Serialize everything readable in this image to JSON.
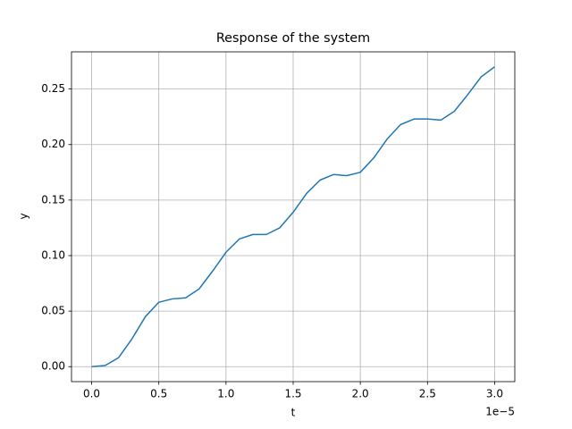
{
  "chart_data": {
    "type": "line",
    "title": "Response of the system",
    "x_label": "t",
    "y_label": "y",
    "x_offset_label": "1e−5",
    "x": [
      0.0,
      0.1,
      0.2,
      0.3,
      0.4,
      0.5,
      0.6,
      0.7,
      0.8,
      0.9,
      1.0,
      1.1,
      1.2,
      1.3,
      1.4,
      1.5,
      1.6,
      1.7,
      1.8,
      1.9,
      2.0,
      2.1,
      2.2,
      2.3,
      2.4,
      2.5,
      2.6,
      2.7,
      2.8,
      2.9,
      3.0
    ],
    "series": [
      {
        "color": "#1f77b4",
        "values": [
          0,
          0.001,
          0.008,
          0.025,
          0.045,
          0.058,
          0.061,
          0.062,
          0.07,
          0.086,
          0.103,
          0.115,
          0.119,
          0.119,
          0.125,
          0.139,
          0.156,
          0.168,
          0.173,
          0.172,
          0.175,
          0.188,
          0.205,
          0.218,
          0.223,
          0.223,
          0.222,
          0.23,
          0.245,
          0.261,
          0.27
        ]
      }
    ],
    "xlim": [
      -0.15,
      3.15
    ],
    "ylim": [
      -0.0135,
      0.2835
    ],
    "xticks": [
      {
        "value": 0,
        "label": "0.0"
      },
      {
        "value": 0.5,
        "label": "0.5"
      },
      {
        "value": 1,
        "label": "1.0"
      },
      {
        "value": 1.5,
        "label": "1.5"
      },
      {
        "value": 2,
        "label": "2.0"
      },
      {
        "value": 2.5,
        "label": "2.5"
      },
      {
        "value": 3,
        "label": "3.0"
      }
    ],
    "yticks": [
      {
        "value": 0,
        "label": "0.00"
      },
      {
        "value": 0.05,
        "label": "0.05"
      },
      {
        "value": 0.1,
        "label": "0.10"
      },
      {
        "value": 0.15,
        "label": "0.15"
      },
      {
        "value": 0.2,
        "label": "0.20"
      },
      {
        "value": 0.25,
        "label": "0.25"
      }
    ],
    "grid": true
  }
}
